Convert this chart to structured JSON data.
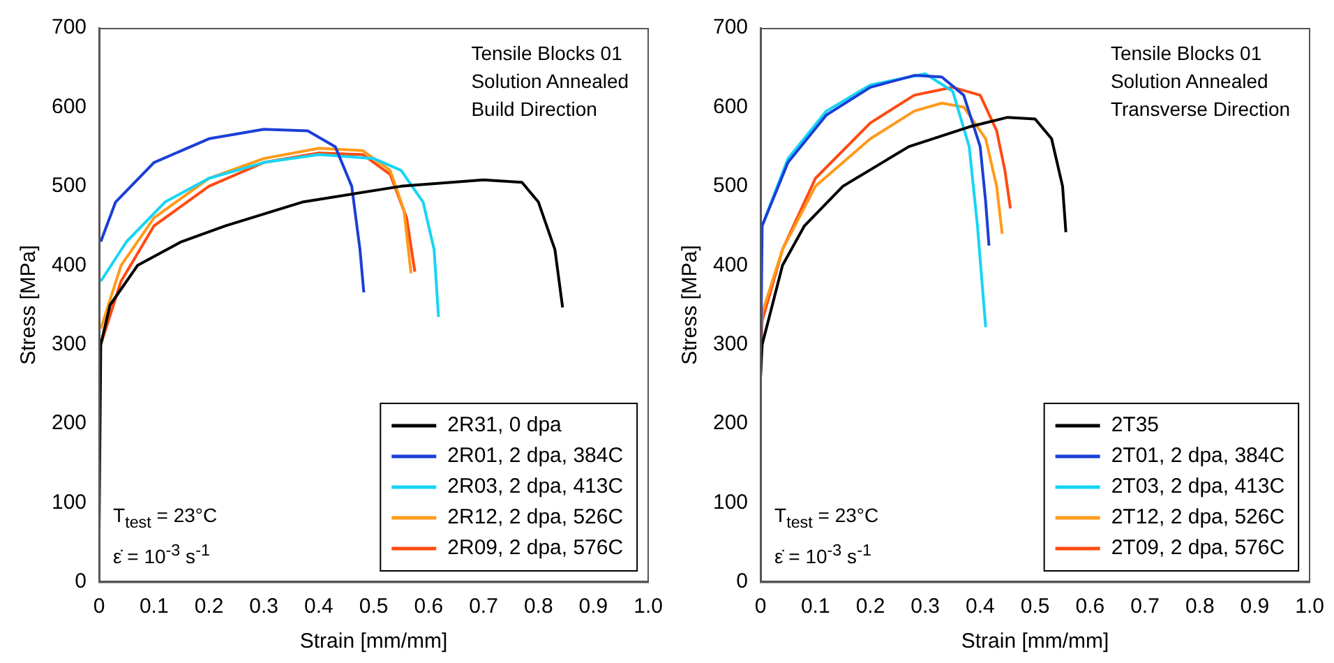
{
  "chart_data": [
    {
      "type": "line",
      "xlabel": "Strain [mm/mm]",
      "ylabel": "Stress [MPa]",
      "xlim": [
        0,
        1
      ],
      "ylim": [
        0,
        700
      ],
      "xticks": [
        0,
        0.1,
        0.2,
        0.3,
        0.4,
        0.5,
        0.6,
        0.7,
        0.8,
        0.9,
        {
          "value": 1,
          "label": "1.0"
        }
      ],
      "yticks": [
        0,
        100,
        200,
        300,
        400,
        500,
        600,
        700
      ],
      "grid": false,
      "legend": "bottom right",
      "marker": "none",
      "line_style": "solid",
      "annotations": [
        "Tensile Blocks 01",
        "Solution Annealed",
        "Build Direction",
        "T$_{test}$ = 23°C",
        "ε̇ = 10$^{-3}$ s$^{-1}$"
      ],
      "series": [
        {
          "name": "2R31, 0 dpa",
          "color": "#000000",
          "x": [
            0,
            0.003,
            0.02,
            0.07,
            0.15,
            0.23,
            0.37,
            0.55,
            0.7,
            0.77,
            0.8,
            0.83,
            0.844
          ],
          "values": [
            65,
            300,
            350,
            400,
            430,
            450,
            480,
            500,
            508,
            505,
            480,
            420,
            347
          ]
        },
        {
          "name": "2R01, 2 dpa, 384C",
          "color": "#1a3fd6",
          "x": [
            0.003,
            0.03,
            0.1,
            0.2,
            0.3,
            0.38,
            0.43,
            0.46,
            0.475,
            0.482
          ],
          "values": [
            430,
            480,
            530,
            560,
            572,
            570,
            550,
            500,
            420,
            366
          ]
        },
        {
          "name": "2R03, 2 dpa, 413C",
          "color": "#17d4f5",
          "x": [
            0.003,
            0.05,
            0.12,
            0.2,
            0.3,
            0.4,
            0.5,
            0.55,
            0.59,
            0.61,
            0.618
          ],
          "values": [
            380,
            430,
            480,
            510,
            530,
            540,
            535,
            520,
            480,
            420,
            335
          ]
        },
        {
          "name": "2R12, 2 dpa, 526C",
          "color": "#ff9a1a",
          "x": [
            0.003,
            0.04,
            0.1,
            0.2,
            0.3,
            0.4,
            0.48,
            0.53,
            0.555,
            0.568
          ],
          "values": [
            320,
            400,
            460,
            510,
            535,
            548,
            545,
            520,
            470,
            390
          ]
        },
        {
          "name": "2R09, 2 dpa, 576C",
          "color": "#ff4a12",
          "x": [
            0.003,
            0.04,
            0.1,
            0.2,
            0.3,
            0.4,
            0.48,
            0.53,
            0.56,
            0.575
          ],
          "values": [
            300,
            380,
            450,
            500,
            530,
            542,
            540,
            515,
            460,
            392
          ]
        }
      ]
    },
    {
      "type": "line",
      "xlabel": "Strain [mm/mm]",
      "ylabel": "Stress [MPa]",
      "xlim": [
        0,
        1
      ],
      "ylim": [
        0,
        700
      ],
      "xticks": [
        0,
        0.1,
        0.2,
        0.3,
        0.4,
        0.5,
        0.6,
        0.7,
        0.8,
        0.9,
        {
          "value": 1,
          "label": "1.0"
        }
      ],
      "yticks": [
        0,
        100,
        200,
        300,
        400,
        500,
        600,
        700
      ],
      "grid": false,
      "legend": "bottom right",
      "marker": "none",
      "line_style": "solid",
      "annotations": [
        "Tensile Blocks 01",
        "Solution Annealed",
        "Transverse Direction",
        "T$_{test}$ = 23°C",
        "ε̇ = 10$^{-3}$ s$^{-1}$"
      ],
      "series": [
        {
          "name": "2T35",
          "color": "#000000",
          "x": [
            0,
            0.003,
            0.04,
            0.08,
            0.15,
            0.27,
            0.38,
            0.45,
            0.5,
            0.53,
            0.55,
            0.556
          ],
          "values": [
            260,
            300,
            400,
            450,
            500,
            550,
            575,
            587,
            585,
            560,
            500,
            442
          ]
        },
        {
          "name": "2T01, 2 dpa, 384C",
          "color": "#1a3fd6",
          "x": [
            0,
            0.003,
            0.05,
            0.12,
            0.2,
            0.28,
            0.33,
            0.37,
            0.4,
            0.41,
            0.416
          ],
          "values": [
            260,
            450,
            530,
            590,
            625,
            640,
            638,
            615,
            550,
            480,
            425
          ]
        },
        {
          "name": "2T03, 2 dpa, 413C",
          "color": "#17d4f5",
          "x": [
            0.003,
            0.05,
            0.12,
            0.2,
            0.3,
            0.35,
            0.38,
            0.395,
            0.41
          ],
          "values": [
            450,
            535,
            595,
            628,
            642,
            620,
            550,
            450,
            322
          ]
        },
        {
          "name": "2T12, 2 dpa, 526C",
          "color": "#ff9a1a",
          "x": [
            0,
            0.003,
            0.04,
            0.1,
            0.2,
            0.28,
            0.33,
            0.37,
            0.41,
            0.43,
            0.44
          ],
          "values": [
            260,
            340,
            420,
            500,
            560,
            595,
            605,
            600,
            560,
            500,
            440
          ]
        },
        {
          "name": "2T09, 2 dpa, 576C",
          "color": "#ff4a12",
          "x": [
            0,
            0.003,
            0.04,
            0.1,
            0.2,
            0.28,
            0.35,
            0.4,
            0.43,
            0.445,
            0.455
          ],
          "values": [
            260,
            330,
            420,
            510,
            580,
            615,
            625,
            615,
            570,
            520,
            472
          ]
        }
      ]
    }
  ]
}
